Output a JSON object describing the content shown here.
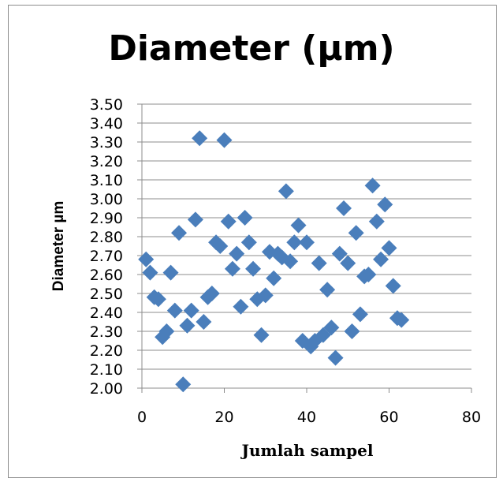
{
  "chart_data": {
    "type": "scatter",
    "title": "Diameter (µm)",
    "xlabel": "Jumlah sampel",
    "ylabel": "Diameter µm",
    "xlim": [
      0,
      80
    ],
    "ylim": [
      2.0,
      3.5
    ],
    "xticks": [
      "0",
      "20",
      "40",
      "60",
      "80"
    ],
    "yticks": [
      "2.00",
      "2.10",
      "2.20",
      "2.30",
      "2.40",
      "2.50",
      "2.60",
      "2.70",
      "2.80",
      "2.90",
      "3.00",
      "3.10",
      "3.20",
      "3.30",
      "3.40",
      "3.50"
    ],
    "grid": "horizontal",
    "marker": "diamond",
    "marker_color": "#4a7ebb",
    "points": [
      [
        1,
        2.68
      ],
      [
        2,
        2.61
      ],
      [
        3,
        2.48
      ],
      [
        4,
        2.47
      ],
      [
        5,
        2.27
      ],
      [
        6,
        2.3
      ],
      [
        7,
        2.61
      ],
      [
        8,
        2.41
      ],
      [
        9,
        2.82
      ],
      [
        10,
        2.02
      ],
      [
        11,
        2.33
      ],
      [
        12,
        2.41
      ],
      [
        13,
        2.89
      ],
      [
        14,
        3.32
      ],
      [
        15,
        2.35
      ],
      [
        16,
        2.48
      ],
      [
        17,
        2.5
      ],
      [
        18,
        2.77
      ],
      [
        19,
        2.75
      ],
      [
        20,
        3.31
      ],
      [
        21,
        2.88
      ],
      [
        22,
        2.63
      ],
      [
        23,
        2.71
      ],
      [
        24,
        2.43
      ],
      [
        25,
        2.9
      ],
      [
        26,
        2.77
      ],
      [
        27,
        2.63
      ],
      [
        28,
        2.47
      ],
      [
        29,
        2.28
      ],
      [
        30,
        2.49
      ],
      [
        31,
        2.72
      ],
      [
        32,
        2.58
      ],
      [
        33,
        2.71
      ],
      [
        34,
        2.69
      ],
      [
        35,
        3.04
      ],
      [
        36,
        2.67
      ],
      [
        37,
        2.77
      ],
      [
        38,
        2.86
      ],
      [
        39,
        2.25
      ],
      [
        40,
        2.77
      ],
      [
        41,
        2.22
      ],
      [
        42,
        2.25
      ],
      [
        43,
        2.66
      ],
      [
        44,
        2.28
      ],
      [
        45,
        2.52
      ],
      [
        46,
        2.32
      ],
      [
        47,
        2.16
      ],
      [
        48,
        2.71
      ],
      [
        49,
        2.95
      ],
      [
        50,
        2.66
      ],
      [
        51,
        2.3
      ],
      [
        52,
        2.82
      ],
      [
        53,
        2.39
      ],
      [
        54,
        2.59
      ],
      [
        55,
        2.6
      ],
      [
        56,
        3.07
      ],
      [
        57,
        2.88
      ],
      [
        58,
        2.68
      ],
      [
        59,
        2.97
      ],
      [
        60,
        2.74
      ],
      [
        61,
        2.54
      ],
      [
        62,
        2.37
      ],
      [
        63,
        2.36
      ]
    ]
  }
}
